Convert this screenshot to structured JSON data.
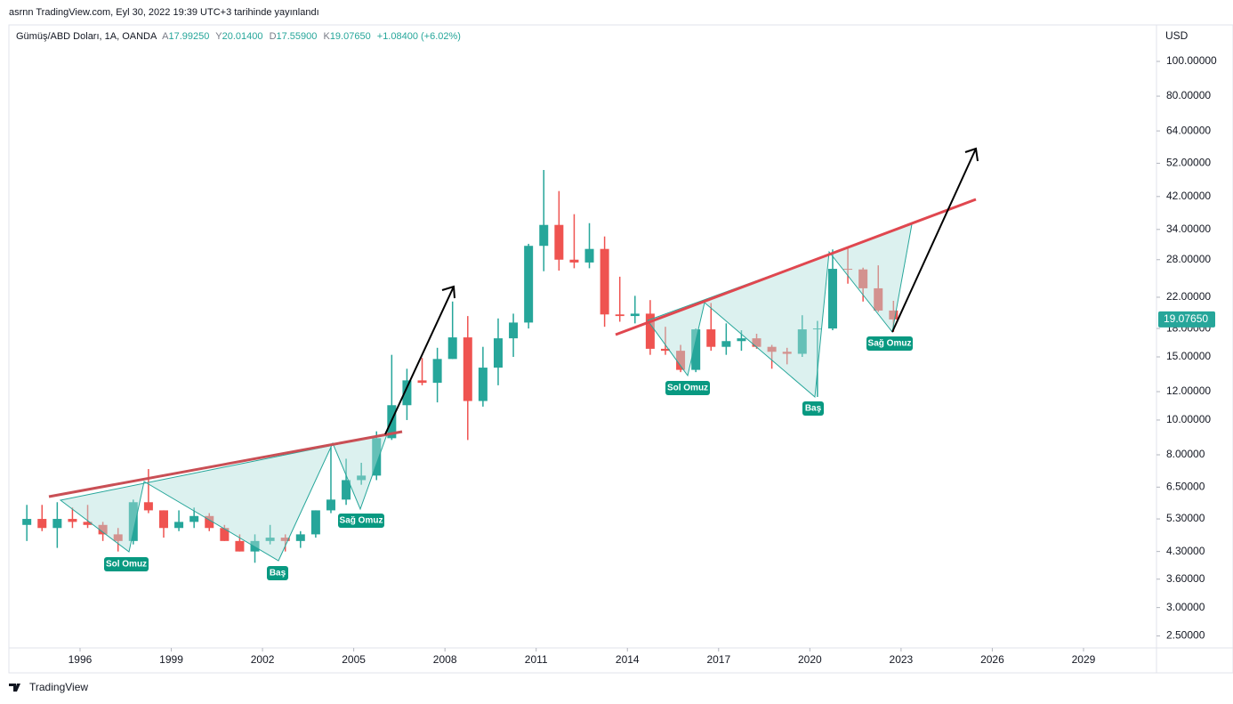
{
  "header": {
    "published": "asrnn TradingView.com, Eyl 30, 2022 19:39 UTC+3 tarihinde yayınlandı",
    "symbol": "Gümüş/ABD Doları, 1A, OANDA",
    "ohlc_letters": [
      "A",
      "Y",
      "D",
      "K"
    ],
    "ohlc_values": [
      "17.99250",
      "20.01400",
      "17.55900",
      "19.07650"
    ],
    "change": "+1.08400 (+6.02%)"
  },
  "footer": {
    "brand": "TradingView"
  },
  "annotations": {
    "left": [
      "Sol Omuz",
      "Baş",
      "Sağ Omuz"
    ],
    "right": [
      "Sol Omuz",
      "Baş",
      "Sağ Omuz"
    ]
  },
  "chart_data": {
    "type": "candlestick",
    "log_scale": true,
    "y_unit": "USD",
    "up_color": "#26a69a",
    "down_color": "#ef5350",
    "x": [
      1994.25,
      1994.75,
      1995.25,
      1995.75,
      1996.25,
      1996.75,
      1997.25,
      1997.75,
      1998.25,
      1998.75,
      1999.25,
      1999.75,
      2000.25,
      2000.75,
      2001.25,
      2001.75,
      2002.25,
      2002.75,
      2003.25,
      2003.75,
      2004.25,
      2004.75,
      2005.25,
      2005.75,
      2006.25,
      2006.75,
      2007.25,
      2007.75,
      2008.25,
      2008.75,
      2009.25,
      2009.75,
      2010.25,
      2010.75,
      2011.25,
      2011.75,
      2012.25,
      2012.75,
      2013.25,
      2013.75,
      2014.25,
      2014.75,
      2015.25,
      2015.75,
      2016.25,
      2016.75,
      2017.25,
      2017.75,
      2018.25,
      2018.75,
      2019.25,
      2019.75,
      2020.25,
      2020.75,
      2021.25,
      2021.75,
      2022.25,
      2022.75
    ],
    "open": [
      5.1,
      5.3,
      5.0,
      5.3,
      5.2,
      5.1,
      4.8,
      4.6,
      5.9,
      5.6,
      5.0,
      5.2,
      5.4,
      5.0,
      4.6,
      4.3,
      4.6,
      4.7,
      4.6,
      4.8,
      5.6,
      6.0,
      6.8,
      7.0,
      8.9,
      11.0,
      12.9,
      12.7,
      14.8,
      17.0,
      11.3,
      14.0,
      16.9,
      18.7,
      30.6,
      35.0,
      28.0,
      27.5,
      30.0,
      19.7,
      19.5,
      19.8,
      15.8,
      15.6,
      13.8,
      17.9,
      16.0,
      16.6,
      16.9,
      16.0,
      15.5,
      15.3,
      17.9,
      18.0,
      26.4,
      26.3,
      23.3,
      20.2
    ],
    "high": [
      5.8,
      5.8,
      5.9,
      5.7,
      5.8,
      5.2,
      5.0,
      6.0,
      7.3,
      5.6,
      5.6,
      5.7,
      5.5,
      5.1,
      4.8,
      4.8,
      5.1,
      4.8,
      4.9,
      5.6,
      8.4,
      7.8,
      7.6,
      9.3,
      15.2,
      13.9,
      14.9,
      15.9,
      21.4,
      19.5,
      16.0,
      19.2,
      19.8,
      31.0,
      49.8,
      43.5,
      37.5,
      35.4,
      32.5,
      25.1,
      22.2,
      21.6,
      18.2,
      16.2,
      18.0,
      21.2,
      18.6,
      17.8,
      17.4,
      16.2,
      15.9,
      19.6,
      18.9,
      29.9,
      30.1,
      26.6,
      27.0,
      21.5
    ],
    "low": [
      4.6,
      4.9,
      4.4,
      5.0,
      5.0,
      4.6,
      4.3,
      4.5,
      5.5,
      4.7,
      4.9,
      5.0,
      4.9,
      4.6,
      4.3,
      4.0,
      4.5,
      4.3,
      4.4,
      4.7,
      5.5,
      5.8,
      6.6,
      6.8,
      8.8,
      10.0,
      12.5,
      11.2,
      14.8,
      8.8,
      10.9,
      12.5,
      15.0,
      18.0,
      26.0,
      26.1,
      26.5,
      26.5,
      18.2,
      18.8,
      18.6,
      15.2,
      15.2,
      13.6,
      13.6,
      15.6,
      15.2,
      15.6,
      15.8,
      13.9,
      14.3,
      15.0,
      11.6,
      17.8,
      24.0,
      21.4,
      20.0,
      17.6
    ],
    "close": [
      5.3,
      5.0,
      5.3,
      5.2,
      5.1,
      4.8,
      4.6,
      5.9,
      5.6,
      5.0,
      5.2,
      5.4,
      5.0,
      4.6,
      4.3,
      4.6,
      4.7,
      4.6,
      4.8,
      5.6,
      6.0,
      6.8,
      7.0,
      8.9,
      11.0,
      12.9,
      12.7,
      14.8,
      17.0,
      11.3,
      14.0,
      16.9,
      18.7,
      30.6,
      35.0,
      28.0,
      27.5,
      30.0,
      19.7,
      19.5,
      19.8,
      15.8,
      15.6,
      13.8,
      17.9,
      16.0,
      16.6,
      16.9,
      16.0,
      15.5,
      15.3,
      17.9,
      18.0,
      26.4,
      26.3,
      23.3,
      20.2,
      19.0765
    ],
    "last_price": {
      "value": 19.0765,
      "label": "19.07650"
    },
    "xlim": [
      1993.66,
      2031.4
    ],
    "xticks": [
      1996,
      1999,
      2002,
      2005,
      2008,
      2011,
      2014,
      2017,
      2020,
      2023,
      2026,
      2029
    ],
    "ylim": [
      2.315,
      126.4
    ],
    "yticks": [
      {
        "value": 100,
        "label": "100.00000"
      },
      {
        "value": 80,
        "label": "80.00000"
      },
      {
        "value": 64,
        "label": "64.00000"
      },
      {
        "value": 52,
        "label": "52.00000"
      },
      {
        "value": 42,
        "label": "42.00000"
      },
      {
        "value": 34,
        "label": "34.00000"
      },
      {
        "value": 28,
        "label": "28.00000"
      },
      {
        "value": 22,
        "label": "22.00000"
      },
      {
        "value": 18,
        "label": "18.00000"
      },
      {
        "value": 15,
        "label": "15.00000"
      },
      {
        "value": 12,
        "label": "12.00000"
      },
      {
        "value": 10,
        "label": "10.00000"
      },
      {
        "value": 8,
        "label": "8.00000"
      },
      {
        "value": 6.5,
        "label": "6.50000"
      },
      {
        "value": 5.3,
        "label": "5.30000"
      },
      {
        "value": 4.3,
        "label": "4.30000"
      },
      {
        "value": 3.6,
        "label": "3.60000"
      },
      {
        "value": 3,
        "label": "3.00000"
      },
      {
        "value": 2.5,
        "label": "2.50000"
      }
    ]
  }
}
